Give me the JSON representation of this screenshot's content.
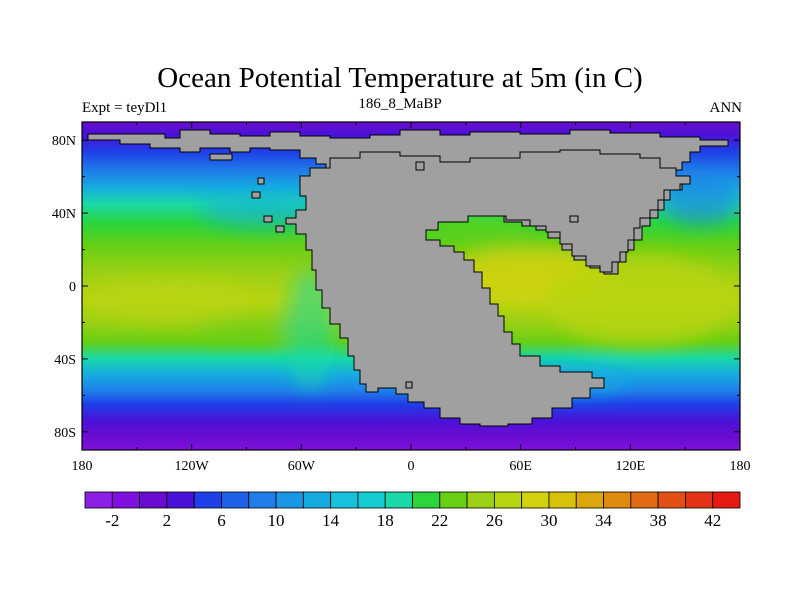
{
  "map": {
    "title": "Ocean Potential Temperature at 5m (in C)",
    "left_label": "Expt = teyDl1",
    "center_label": "186_8_MaBP",
    "right_label": "ANN",
    "land_color": "#a0a0a0",
    "x_ticks": [
      {
        "lon": -180,
        "label": "180"
      },
      {
        "lon": -120,
        "label": "120W"
      },
      {
        "lon": -60,
        "label": "60W"
      },
      {
        "lon": 0,
        "label": "0"
      },
      {
        "lon": 60,
        "label": "60E"
      },
      {
        "lon": 120,
        "label": "120E"
      },
      {
        "lon": 180,
        "label": "180"
      }
    ],
    "y_ticks": [
      {
        "lat": 80,
        "label": "80N"
      },
      {
        "lat": 40,
        "label": "40N"
      },
      {
        "lat": 0,
        "label": "0"
      },
      {
        "lat": -40,
        "label": "40S"
      },
      {
        "lat": -80,
        "label": "80S"
      }
    ]
  },
  "colorbar": {
    "colors": [
      "#8c1ee6",
      "#7f10dd",
      "#6a0ccf",
      "#4a12d8",
      "#1f3fe8",
      "#1d62e8",
      "#1f7ee9",
      "#1996e4",
      "#16abe0",
      "#16c1de",
      "#14ccd0",
      "#19d9a6",
      "#2bd53a",
      "#67cf14",
      "#9bd015",
      "#b9d411",
      "#d2d20f",
      "#d8c10b",
      "#dba70b",
      "#de8a0d",
      "#e26a12",
      "#e44f14",
      "#e43216",
      "#e61a12"
    ],
    "labels": [
      "-2",
      "2",
      "6",
      "10",
      "14",
      "18",
      "22",
      "26",
      "30",
      "34",
      "38",
      "42"
    ]
  }
}
